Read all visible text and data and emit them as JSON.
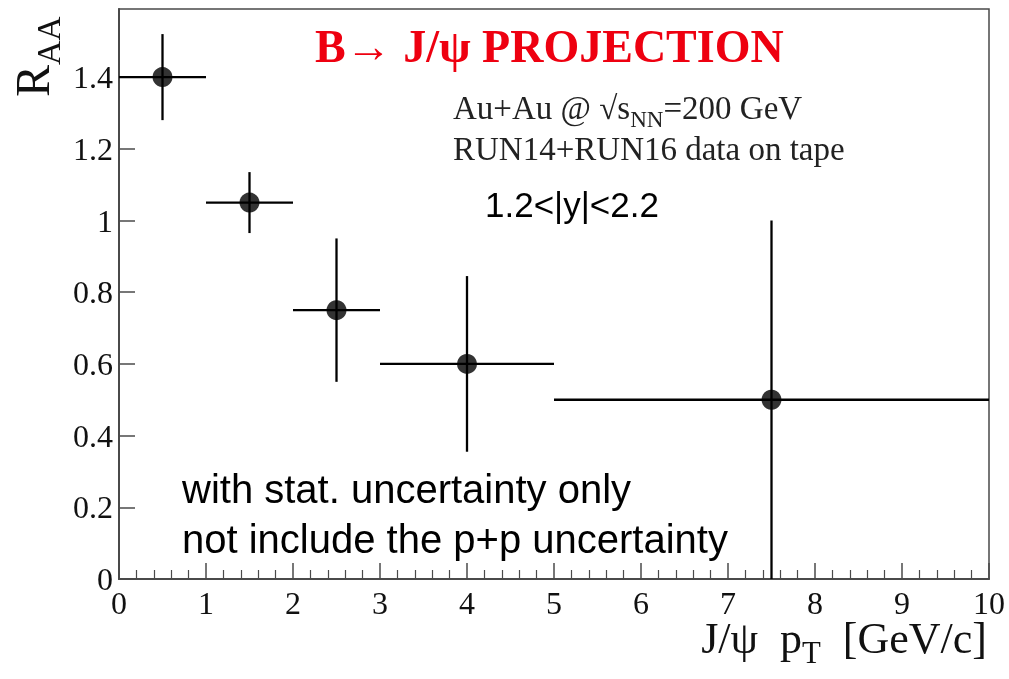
{
  "chart_data": {
    "type": "scatter",
    "title": "B→ J/ψ PROJECTION",
    "xlabel": "J/ψ  p$_{T}$  [GeV/c]",
    "ylabel": "R$_{AA}$",
    "annotations": [
      "Au+Au @ √s$_{NN}$=200 GeV",
      "RUN14+RUN16 data on tape",
      "1.2<|y|<2.2",
      "with stat. uncertainty only",
      "not include the p+p uncertainty"
    ],
    "x": [
      0.5,
      1.5,
      2.5,
      4,
      7.5
    ],
    "values": [
      1.4,
      1.05,
      0.75,
      0.6,
      0.5
    ],
    "color": "#000000",
    "errors": [
      0.12,
      0.085,
      0.2,
      0.245,
      0.5
    ],
    "xerrors": [
      0.5,
      0.5,
      0.5,
      1,
      2.5
    ],
    "xlim": [
      0,
      10
    ],
    "ylim": [
      0,
      1.59
    ],
    "xticks": [
      0,
      1,
      2,
      3,
      4,
      5,
      6,
      7,
      8,
      9,
      10
    ],
    "yticks": [
      0,
      0.2,
      0.4,
      0.6,
      0.8,
      1,
      1.2,
      1.4
    ],
    "grid": false,
    "marker": "circle"
  }
}
